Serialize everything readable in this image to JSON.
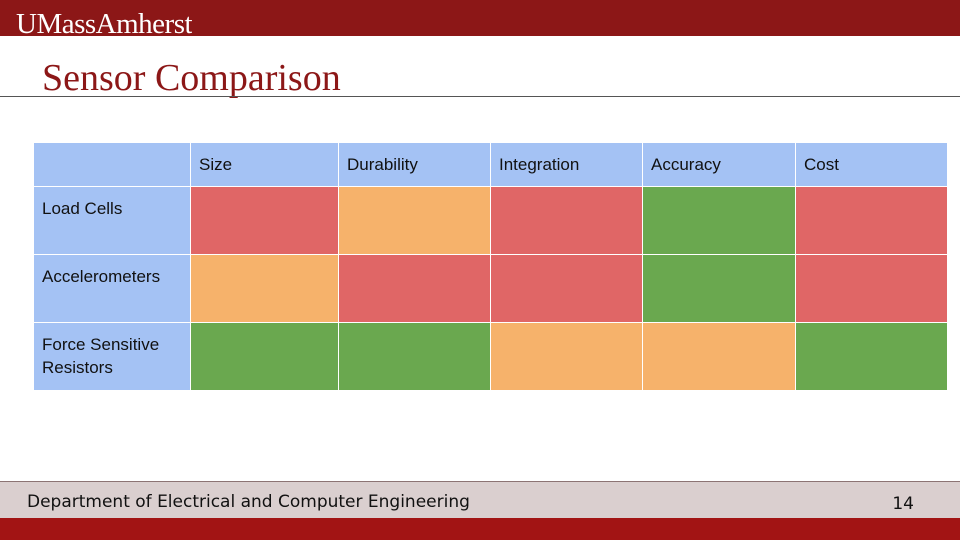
{
  "header": {
    "logo_text": "UMassAmherst"
  },
  "slide": {
    "title": "Sensor Comparison"
  },
  "table": {
    "columns": [
      "",
      "Size",
      "Durability",
      "Integration",
      "Accuracy",
      "Cost"
    ],
    "rows": [
      {
        "label": "Load Cells",
        "ratings": [
          "red",
          "orange",
          "red",
          "green",
          "red"
        ]
      },
      {
        "label": "Accelerometers",
        "ratings": [
          "orange",
          "red",
          "red",
          "green",
          "red"
        ]
      },
      {
        "label": "Force Sensitive Resistors",
        "ratings": [
          "green",
          "green",
          "orange",
          "orange",
          "green"
        ]
      }
    ],
    "colors": {
      "red": "#e06666",
      "orange": "#f6b26b",
      "green": "#6aa84f",
      "header": "#a4c2f4"
    }
  },
  "footer": {
    "department": "Department of Electrical and Computer Engineering",
    "page_number": "14"
  }
}
